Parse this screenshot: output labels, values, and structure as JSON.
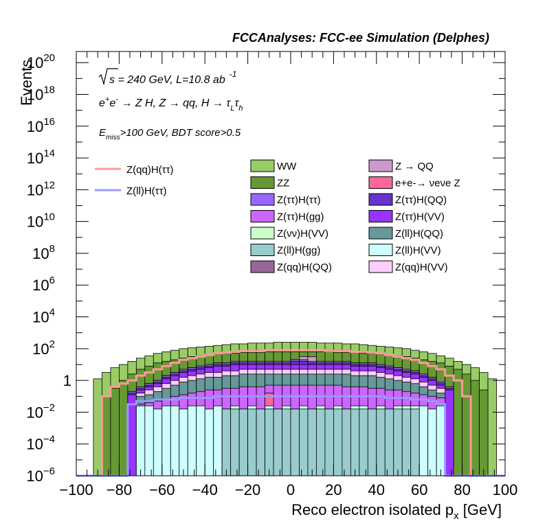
{
  "header": {
    "text": "FCCAnalyses: FCC-ee Simulation (Delphes)"
  },
  "annotations": {
    "line1_sqrt": "s",
    "line1_rest": " = 240 GeV, L=10.8 ab",
    "line1_exp": "-1",
    "line2_e": "e",
    "line2_plus": "+",
    "line2_e2": "e",
    "line2_minus": "-",
    "line2_arrow1": " → Z H, Z ",
    "line2_arrow2": "→ qq, H ",
    "line2_arrow3": "→ τ",
    "line2_sub_L": "L",
    "line2_tau2": "τ",
    "line2_sub_h": "h",
    "line3_E": "E",
    "line3_sub": "miss",
    "line3_rest": ">100 GeV, BDT score>0.5"
  },
  "chart_data": {
    "type": "bar",
    "stacked": true,
    "log_y": true,
    "xlabel": "Reco electron isolated p",
    "xlabel_sub": "x",
    "xlabel_unit": " [GeV]",
    "ylabel": "Events",
    "xlim": [
      -100,
      100
    ],
    "ylim_log10": [
      -6,
      20.7
    ],
    "x_ticks": [
      "−100",
      "−80",
      "−60",
      "−40",
      "−20",
      "0",
      "20",
      "40",
      "60",
      "80",
      "100"
    ],
    "y_ticks": [
      {
        "exp": -6,
        "base": "10",
        "sup": "−6"
      },
      {
        "exp": -4,
        "base": "10",
        "sup": "−4"
      },
      {
        "exp": -2,
        "base": "10",
        "sup": "−2"
      },
      {
        "exp": 0,
        "base": "1",
        "sup": ""
      },
      {
        "exp": 2,
        "base": "10",
        "sup": "2"
      },
      {
        "exp": 4,
        "base": "10",
        "sup": "4"
      },
      {
        "exp": 6,
        "base": "10",
        "sup": "6"
      },
      {
        "exp": 8,
        "base": "10",
        "sup": "8"
      },
      {
        "exp": 10,
        "base": "10",
        "sup": "10"
      },
      {
        "exp": 12,
        "base": "10",
        "sup": "12"
      },
      {
        "exp": 14,
        "base": "10",
        "sup": "14"
      },
      {
        "exp": 16,
        "base": "10",
        "sup": "16"
      },
      {
        "exp": 18,
        "base": "10",
        "sup": "18"
      },
      {
        "exp": 20,
        "base": "10",
        "sup": "20"
      }
    ],
    "bin_width": 4,
    "bins_x": [
      -100,
      -96,
      -92,
      -88,
      -84,
      -80,
      -76,
      -72,
      -68,
      -64,
      -60,
      -56,
      -52,
      -48,
      -44,
      -40,
      -36,
      -32,
      -28,
      -24,
      -20,
      -16,
      -12,
      -8,
      -4,
      0,
      4,
      8,
      12,
      16,
      20,
      24,
      28,
      32,
      36,
      40,
      44,
      48,
      52,
      56,
      60,
      64,
      68,
      72,
      76,
      80,
      84,
      88,
      92,
      96
    ],
    "stack_series": [
      {
        "name": "Z(ll)H(gg)",
        "color": "#99cccc",
        "log10": [
          -6.2,
          -6.2,
          -6.2,
          -6.2,
          -6.2,
          -6.2,
          -6.2,
          -6.2,
          -6.2,
          -6.2,
          -6.2,
          -6.2,
          -6.2,
          -6.2,
          -6.2,
          -6.2,
          -6.2,
          -1.8,
          -1.8,
          -1.8,
          -1.8,
          -1.8,
          -1.8,
          -1.8,
          -1.8,
          -1.8,
          -1.8,
          -1.8,
          -1.8,
          -1.8,
          -1.8,
          -1.8,
          -1.8,
          -1.8,
          -1.8,
          -1.8,
          -1.8,
          -1.8,
          -1.8,
          -1.8,
          -6.2,
          -6.2,
          -6.2,
          -6.2,
          -6.2,
          -6.2,
          -6.2,
          -6.2,
          -6.2,
          -6.2
        ]
      },
      {
        "name": "Z(ll)H(VV)",
        "color": "#ccffff",
        "log10": [
          -6.2,
          -6.2,
          -6.2,
          -6.2,
          -6.2,
          -6.2,
          -6.2,
          -1.6,
          -1.6,
          -1.8,
          -1.6,
          -1.6,
          -1.8,
          -1.6,
          -1.6,
          -1.8,
          -1.6,
          -1.8,
          -1.6,
          -1.8,
          -1.6,
          -1.8,
          -1.6,
          -1.8,
          -1.6,
          -1.8,
          -1.6,
          -1.8,
          -1.6,
          -1.8,
          -1.6,
          -1.8,
          -1.6,
          -1.6,
          -1.8,
          -1.6,
          -1.8,
          -1.6,
          -1.6,
          -1.6,
          -1.6,
          -1.8,
          -1.6,
          -6.2,
          -6.2,
          -6.2,
          -6.2,
          -6.2,
          -6.2,
          -6.2
        ]
      },
      {
        "name": "Z(qq)H(QQ)",
        "color": "#996699",
        "log10": [
          -6.2,
          -6.2,
          -6.2,
          -6.2,
          -6.2,
          -6.2,
          -6.2,
          -6.2,
          -6.2,
          -6.2,
          -6.2,
          -6.2,
          -6.2,
          -6.2,
          -6.2,
          -6.2,
          -6.2,
          -6.2,
          -6.2,
          -6.2,
          -6.2,
          -6.2,
          -6.2,
          -6.2,
          -6.2,
          -3.5,
          -6.2,
          -6.2,
          -6.2,
          -6.2,
          -6.2,
          -6.2,
          -6.2,
          -6.2,
          -6.2,
          -6.2,
          -6.2,
          -6.2,
          -6.2,
          -6.2,
          -6.2,
          -6.2,
          -6.2,
          -6.2,
          -6.2,
          -6.2,
          -6.2,
          -6.2,
          -6.2,
          -6.2
        ]
      },
      {
        "name": "e+e- → νeνe Z",
        "color": "#ff6699",
        "log10": [
          -6.2,
          -6.2,
          -6.2,
          -6.2,
          -6.2,
          -6.2,
          -6.2,
          -6.2,
          -6.2,
          -6.2,
          -6.2,
          -6.2,
          -6.2,
          -6.2,
          -6.2,
          -6.2,
          -6.2,
          -6.2,
          -6.2,
          -6.2,
          -6.2,
          -6.2,
          -0.8,
          -6.2,
          -6.2,
          -6.2,
          -6.2,
          -6.2,
          -6.2,
          -6.2,
          -6.2,
          -6.2,
          -6.2,
          -6.2,
          -6.2,
          -6.2,
          -6.2,
          -6.2,
          -6.2,
          -6.2,
          -6.2,
          -6.2,
          -6.2,
          -6.2,
          -6.2,
          -6.2,
          -6.2,
          -6.2,
          -6.2,
          -6.2
        ]
      },
      {
        "name": "Z(ττ)H(gg)",
        "color": "#cc66ff",
        "log10": [
          -6.2,
          -6.2,
          -6.2,
          -6.2,
          -6.2,
          -6.2,
          -6.2,
          -1.5,
          -1.4,
          -1.3,
          -1.2,
          -1.0,
          -0.9,
          -0.8,
          -0.7,
          -0.6,
          -0.6,
          -0.5,
          -0.5,
          -0.4,
          -0.4,
          -0.4,
          -0.3,
          -0.3,
          -0.3,
          -0.3,
          -0.3,
          -0.3,
          -0.3,
          -0.3,
          -0.3,
          -0.4,
          -0.4,
          -0.4,
          -0.5,
          -0.5,
          -0.6,
          -0.6,
          -0.7,
          -0.8,
          -0.9,
          -1.0,
          -1.1,
          -6.2,
          -6.2,
          -6.2,
          -6.2,
          -6.2,
          -6.2,
          -6.2
        ]
      },
      {
        "name": "Z(ll)H(QQ)",
        "color": "#669999",
        "log10": [
          -6.2,
          -6.2,
          -6.2,
          -6.2,
          -6.2,
          -6.2,
          -6.2,
          -1.0,
          -0.9,
          -0.7,
          -0.5,
          -0.3,
          -0.1,
          0.0,
          0.1,
          0.2,
          0.2,
          0.3,
          0.3,
          0.4,
          0.4,
          0.4,
          0.4,
          0.4,
          0.4,
          0.4,
          0.4,
          0.4,
          0.4,
          0.4,
          0.4,
          0.4,
          0.3,
          0.3,
          0.3,
          0.2,
          0.1,
          0.0,
          -0.1,
          -0.2,
          -0.4,
          -0.6,
          -0.8,
          -6.2,
          -6.2,
          -6.2,
          -6.2,
          -6.2,
          -6.2,
          -6.2
        ]
      },
      {
        "name": "Z(qq)H(VV)",
        "color": "#ffccff",
        "log10": [
          -6.2,
          -6.2,
          -6.2,
          -6.2,
          -6.2,
          -6.2,
          -6.2,
          -0.8,
          -0.6,
          -0.4,
          -0.2,
          0.0,
          0.2,
          0.3,
          0.4,
          0.5,
          0.5,
          0.6,
          0.6,
          0.7,
          0.7,
          0.7,
          0.7,
          0.7,
          0.7,
          0.7,
          0.7,
          0.7,
          0.7,
          0.7,
          0.7,
          0.7,
          0.6,
          0.6,
          0.6,
          0.5,
          0.4,
          0.3,
          0.2,
          0.1,
          -0.1,
          -0.3,
          -0.5,
          -6.2,
          -6.2,
          -6.2,
          -6.2,
          -6.2,
          -6.2,
          -6.2
        ]
      },
      {
        "name": "Z(ττ)H(VV)",
        "color": "#9933ff",
        "log10": [
          -6.2,
          -6.2,
          -6.2,
          -6.2,
          -6.2,
          -6.2,
          -0.9,
          -0.6,
          -0.4,
          -0.2,
          0.1,
          0.3,
          0.5,
          0.6,
          0.7,
          0.8,
          0.9,
          0.9,
          1.0,
          1.0,
          1.0,
          1.0,
          1.0,
          1.0,
          1.0,
          1.0,
          1.0,
          1.0,
          1.0,
          1.0,
          1.0,
          1.0,
          0.9,
          0.9,
          0.9,
          0.8,
          0.7,
          0.6,
          0.5,
          0.4,
          0.2,
          0.0,
          -0.3,
          -0.6,
          -6.2,
          -6.2,
          -6.2,
          -6.2,
          -6.2,
          -6.2
        ]
      },
      {
        "name": "Z(ττ)H(QQ)",
        "color": "#6633cc",
        "log10": [
          -6.2,
          -6.2,
          -6.2,
          -6.2,
          -6.2,
          -6.2,
          -0.8,
          -0.5,
          -0.3,
          -0.1,
          0.2,
          0.4,
          0.6,
          0.7,
          0.8,
          0.9,
          1.0,
          1.0,
          1.1,
          1.1,
          1.1,
          1.1,
          1.1,
          1.1,
          1.1,
          1.2,
          1.2,
          1.1,
          1.1,
          1.1,
          1.1,
          1.1,
          1.0,
          1.0,
          1.0,
          0.9,
          0.8,
          0.7,
          0.6,
          0.5,
          0.3,
          0.1,
          -0.2,
          -0.5,
          -6.2,
          -6.2,
          -6.2,
          -6.2,
          -6.2,
          -6.2
        ]
      },
      {
        "name": "Z(ττ)H(ττ)",
        "color": "#9966ff",
        "log10": [
          -6.2,
          -6.2,
          -6.2,
          -6.2,
          -6.2,
          -6.2,
          -0.7,
          -0.4,
          -0.2,
          0.0,
          0.3,
          0.5,
          0.7,
          0.8,
          0.9,
          1.0,
          1.1,
          1.1,
          1.2,
          1.2,
          1.2,
          1.2,
          1.2,
          1.2,
          1.2,
          1.3,
          1.3,
          1.2,
          1.2,
          1.2,
          1.2,
          1.2,
          1.1,
          1.1,
          1.1,
          1.0,
          0.9,
          0.8,
          0.7,
          0.6,
          0.4,
          0.2,
          -0.1,
          -0.4,
          -6.2,
          -6.2,
          -6.2,
          -6.2,
          -6.2,
          -6.2
        ]
      },
      {
        "name": "Z(νν)H(VV)",
        "color": "#ccffcc",
        "log10": [
          -6.2,
          -6.2,
          -6.2,
          -6.2,
          -6.2,
          -6.2,
          -0.7,
          -0.4,
          -0.2,
          0.0,
          0.3,
          0.5,
          0.7,
          0.8,
          0.9,
          1.0,
          1.1,
          1.1,
          1.2,
          1.2,
          1.2,
          1.2,
          1.2,
          1.2,
          1.2,
          1.3,
          1.3,
          1.2,
          1.2,
          1.2,
          1.2,
          1.2,
          1.1,
          1.1,
          1.1,
          1.0,
          0.9,
          0.8,
          0.7,
          0.6,
          0.4,
          0.2,
          -0.1,
          -0.4,
          -6.2,
          -6.2,
          -6.2,
          -6.2,
          -6.2,
          -6.2
        ]
      },
      {
        "name": "Z → QQ",
        "color": "#cc99cc",
        "log10": [
          -6.2,
          -6.2,
          -6.2,
          -6.2,
          -6.2,
          -6.2,
          -0.7,
          -0.4,
          -0.2,
          0.0,
          0.3,
          0.5,
          0.7,
          0.8,
          0.9,
          1.0,
          1.1,
          1.1,
          1.2,
          1.2,
          1.2,
          1.2,
          1.2,
          1.2,
          1.2,
          1.3,
          1.5,
          1.5,
          1.2,
          1.2,
          1.2,
          1.2,
          1.1,
          1.1,
          1.1,
          1.0,
          0.9,
          0.8,
          0.7,
          0.6,
          0.4,
          0.2,
          -0.1,
          -0.4,
          -6.2,
          -6.2,
          -6.2,
          -6.2,
          -6.2,
          -6.2
        ]
      },
      {
        "name": "ZZ",
        "color": "#669933",
        "log10": [
          -6.2,
          -6.2,
          -6.2,
          -1.0,
          -0.5,
          0.0,
          0.4,
          0.7,
          0.9,
          1.1,
          1.2,
          1.3,
          1.4,
          1.5,
          1.55,
          1.6,
          1.65,
          1.7,
          1.7,
          1.75,
          1.75,
          1.75,
          1.8,
          1.8,
          1.8,
          1.8,
          1.8,
          1.8,
          1.8,
          1.8,
          1.75,
          1.75,
          1.75,
          1.7,
          1.7,
          1.65,
          1.6,
          1.55,
          1.5,
          1.4,
          1.3,
          1.2,
          1.1,
          0.9,
          0.7,
          0.4,
          0.0,
          -0.6,
          -6.2,
          -6.2
        ]
      },
      {
        "name": "WW",
        "color": "#99cc66",
        "log10": [
          -6.2,
          -6.2,
          0.1,
          0.5,
          0.8,
          1.0,
          1.2,
          1.4,
          1.55,
          1.7,
          1.8,
          1.9,
          2.0,
          2.05,
          2.1,
          2.15,
          2.2,
          2.25,
          2.3,
          2.3,
          2.35,
          2.35,
          2.35,
          2.4,
          2.4,
          2.4,
          2.4,
          2.4,
          2.35,
          2.35,
          2.35,
          2.3,
          2.3,
          2.25,
          2.2,
          2.15,
          2.1,
          2.05,
          2.0,
          1.9,
          1.8,
          1.7,
          1.55,
          1.4,
          1.2,
          1.0,
          0.8,
          0.5,
          0.1,
          -6.2
        ]
      }
    ],
    "line_series": [
      {
        "name": "Z(qq)H(ττ)",
        "color": "#ff9999",
        "log10": [
          -6.2,
          -6.2,
          -6.2,
          -1.0,
          -0.4,
          -0.2,
          0.0,
          0.3,
          0.5,
          0.7,
          0.9,
          1.1,
          1.3,
          1.4,
          1.5,
          1.6,
          1.7,
          1.75,
          1.8,
          1.85,
          1.85,
          1.85,
          1.9,
          1.9,
          1.9,
          1.9,
          1.9,
          1.9,
          1.9,
          1.85,
          1.85,
          1.85,
          1.8,
          1.8,
          1.75,
          1.7,
          1.6,
          1.5,
          1.4,
          1.3,
          1.1,
          0.9,
          0.7,
          0.3,
          0.0,
          -1.0,
          -6.2,
          -6.2,
          -6.2,
          -6.2
        ]
      },
      {
        "name": "Z(ll)H(ττ)",
        "color": "#9999ff",
        "log10": [
          -6.2,
          -6.2,
          -6.2,
          -6.2,
          -6.2,
          -6.2,
          -1.5,
          -1.3,
          -1.3,
          -1.2,
          -1.2,
          -1.2,
          -1.1,
          -1.1,
          -1.1,
          -1.1,
          -1.0,
          -1.0,
          -1.0,
          -1.0,
          -1.0,
          -1.0,
          -1.0,
          -1.0,
          -1.0,
          -1.0,
          -1.0,
          -1.0,
          -1.0,
          -1.0,
          -1.0,
          -1.0,
          -1.0,
          -1.0,
          -1.0,
          -1.0,
          -1.1,
          -1.1,
          -1.1,
          -1.2,
          -1.2,
          -1.3,
          -1.5,
          -6.2,
          -6.2,
          -6.2,
          -6.2,
          -6.2,
          -6.2,
          -6.2
        ]
      }
    ],
    "legend": {
      "lines": [
        "Z(qq)H(ττ)",
        "Z(ll)H(ττ)"
      ],
      "boxes_col1": [
        "WW",
        "ZZ",
        "Z(ττ)H(ττ)",
        "Z(ττ)H(gg)",
        "Z(νν)H(VV)",
        "Z(ll)H(gg)",
        "Z(qq)H(QQ)"
      ],
      "boxes_col2": [
        "Z → QQ",
        "e+e-→ νeνe Z",
        "Z(ττ)H(QQ)",
        "Z(ττ)H(VV)",
        "Z(ll)H(QQ)",
        "Z(ll)H(VV)",
        "Z(qq)H(VV)"
      ],
      "colors_col1": [
        "#99cc66",
        "#669933",
        "#9966ff",
        "#cc66ff",
        "#ccffcc",
        "#99cccc",
        "#996699"
      ],
      "colors_col2": [
        "#cc99cc",
        "#ff6699",
        "#6633cc",
        "#9933ff",
        "#669999",
        "#ccffff",
        "#ffccff"
      ],
      "line_colors": [
        "#ff9999",
        "#9999ff"
      ]
    }
  }
}
